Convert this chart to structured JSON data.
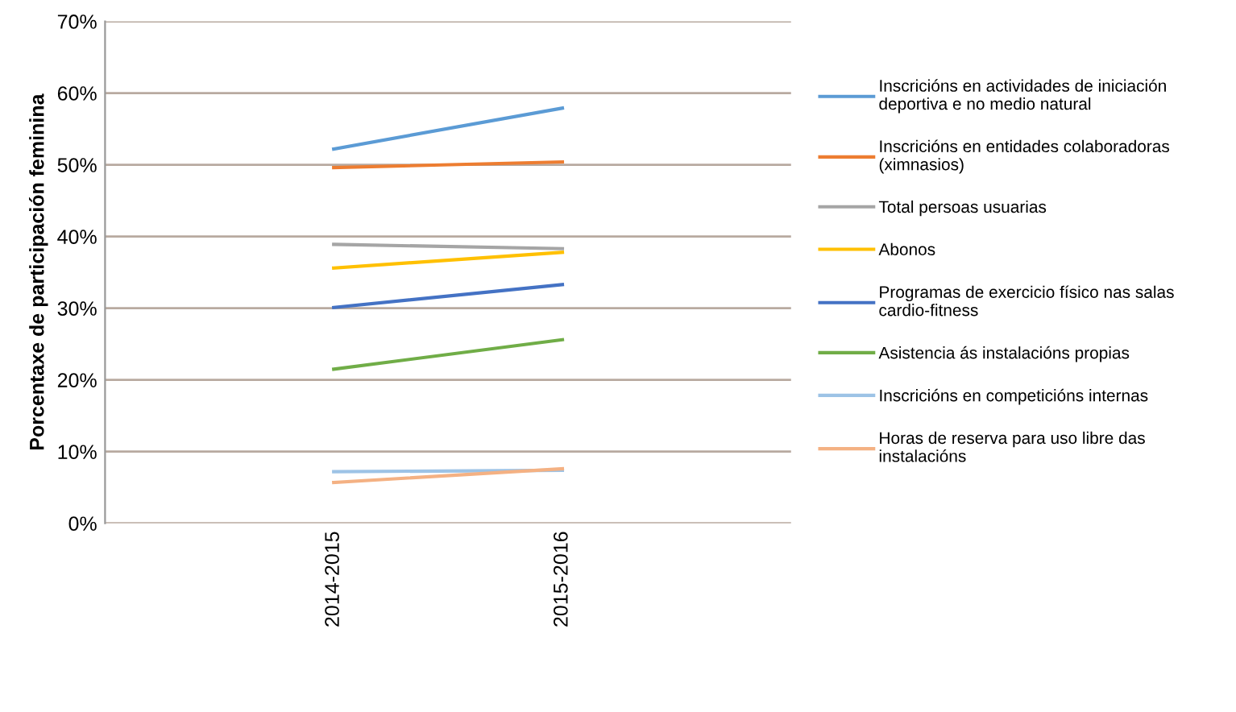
{
  "chart_data": {
    "type": "line",
    "ylabel": "Porcentaxe de participación feminina",
    "categories": [
      "2014-2015",
      "2015-2016"
    ],
    "series": [
      {
        "name": "Inscricións en actividades de iniciación deportiva e no medio natural",
        "color": "#5b9bd5",
        "values": [
          52.2,
          57.9
        ]
      },
      {
        "name": "Inscricións en entidades colaboradoras (ximnasios)",
        "color": "#ed7d31",
        "values": [
          49.6,
          50.4
        ]
      },
      {
        "name": "Total persoas usuarias",
        "color": "#a5a5a5",
        "values": [
          38.9,
          38.3
        ]
      },
      {
        "name": "Abonos",
        "color": "#ffc000",
        "values": [
          35.6,
          37.8
        ]
      },
      {
        "name": "Programas de exercicio físico nas salas cardio-fitness",
        "color": "#4472c4",
        "values": [
          30.1,
          33.3
        ]
      },
      {
        "name": "Asistencia ás instalacións propias",
        "color": "#70ad47",
        "values": [
          21.5,
          25.6
        ]
      },
      {
        "name": "Inscricións en competicións internas",
        "color": "#9dc3e6",
        "values": [
          7.2,
          7.4
        ]
      },
      {
        "name": "Horas de reserva para uso libre das instalacións",
        "color": "#f4b183",
        "values": [
          5.7,
          7.6
        ]
      }
    ],
    "ylim": [
      0,
      70
    ],
    "yticks": [
      {
        "value": 0,
        "label": "0%"
      },
      {
        "value": 10,
        "label": "10%"
      },
      {
        "value": 20,
        "label": "20%"
      },
      {
        "value": 30,
        "label": "30%"
      },
      {
        "value": 40,
        "label": "40%"
      },
      {
        "value": 50,
        "label": "50%"
      },
      {
        "value": 60,
        "label": "60%"
      },
      {
        "value": 70,
        "label": "70%"
      }
    ],
    "grid": "y",
    "legend": "right",
    "marker": "none",
    "line_style": "solid"
  }
}
